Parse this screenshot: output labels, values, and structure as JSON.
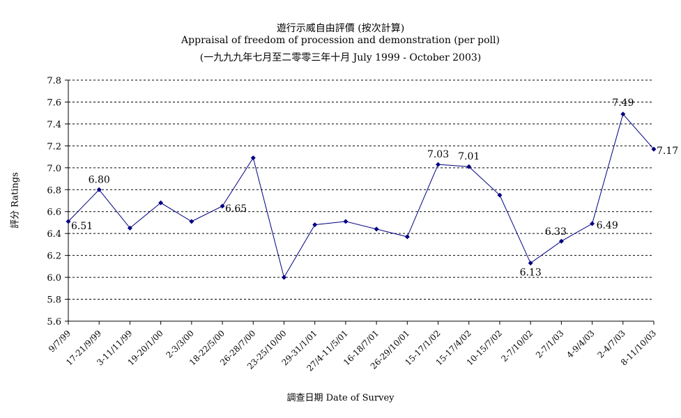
{
  "chart_data": {
    "type": "line",
    "title": "遊行示威自由評價 (按次計算)",
    "subtitle": "Appraisal of freedom of procession and demonstration (per poll)",
    "subtitle2": "(一九九九年七月至二零零三年十月 July 1999 - October 2003)",
    "xlabel": "調查日期 Date of Survey",
    "ylabel": "評分 Ratings",
    "ylim": [
      5.6,
      7.8
    ],
    "yticks": [
      "5.6",
      "5.8",
      "6.0",
      "6.2",
      "6.4",
      "6.6",
      "6.8",
      "7.0",
      "7.2",
      "7.4",
      "7.6",
      "7.8"
    ],
    "grid": true,
    "categories": [
      "9/7/99",
      "17-21/9/99",
      "3-11/11/99",
      "19-20/1/00",
      "2-3/3/00",
      "18-22/5/00",
      "26-28/7/00",
      "23-25/10/00",
      "29-31/1/01",
      "27/4-11/5/01",
      "16-18/7/01",
      "26-29/10/01",
      "15-17/1/02",
      "15-17/4/02",
      "10-15/7/02",
      "2-7/10/02",
      "2-7/1/03",
      "4-9/4/03",
      "2-4/7/03",
      "8-11/10/03"
    ],
    "values": [
      6.51,
      6.8,
      6.45,
      6.68,
      6.51,
      6.65,
      7.09,
      6.0,
      6.48,
      6.51,
      6.44,
      6.37,
      7.03,
      7.01,
      6.75,
      6.13,
      6.33,
      6.49,
      7.49,
      7.17
    ],
    "data_labels": [
      {
        "index": 0,
        "text": "6.51"
      },
      {
        "index": 1,
        "text": "6.80"
      },
      {
        "index": 5,
        "text": "6.65"
      },
      {
        "index": 12,
        "text": "7.03"
      },
      {
        "index": 13,
        "text": "7.01"
      },
      {
        "index": 15,
        "text": "6.13"
      },
      {
        "index": 16,
        "text": "6.33"
      },
      {
        "index": 17,
        "text": "6.49"
      },
      {
        "index": 18,
        "text": "7.49"
      },
      {
        "index": 19,
        "text": "7.17"
      }
    ],
    "line_color": "#000080",
    "marker": "diamond"
  }
}
